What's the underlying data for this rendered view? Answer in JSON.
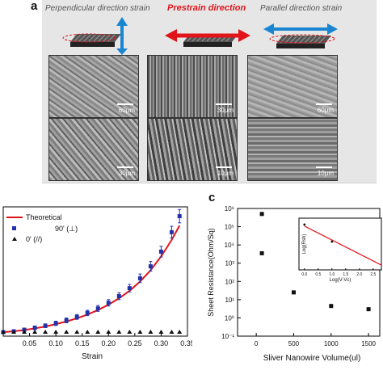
{
  "panel_a": {
    "letter": "a",
    "headers": {
      "perpendicular": "Perpendicular direction strain",
      "prestrain": "Prestrain direction",
      "parallel": "Parallel direction strain"
    },
    "scalebars": {
      "r1c1": "60μm",
      "r1c2": "30μm",
      "r1c3": "60μm",
      "r2c1": "30μm",
      "r2c2": "10μm",
      "r2c3": "10μm"
    },
    "colors": {
      "arrow_blue": "#1a86d2",
      "arrow_red": "#e1141a"
    }
  },
  "panel_c": {
    "letter": "c"
  },
  "chart_data": [
    {
      "type": "scatter",
      "title": "",
      "xlabel": "Strain",
      "ylabel": "",
      "xlim": [
        0.0,
        0.35
      ],
      "x_ticks": [
        "0.05",
        "0.10",
        "0.15",
        "0.20",
        "0.25",
        "0.30",
        "0.35"
      ],
      "legend": [
        "Theoretical",
        "90' (⊥)",
        "0' (//)"
      ],
      "legend_position": "top-left",
      "series": [
        {
          "name": "Theoretical",
          "kind": "line",
          "color": "#e1141a",
          "x": [
            0.0,
            0.02,
            0.04,
            0.06,
            0.08,
            0.1,
            0.12,
            0.14,
            0.16,
            0.18,
            0.2,
            0.22,
            0.24,
            0.26,
            0.28,
            0.3,
            0.32,
            0.335
          ],
          "y": [
            1.0,
            1.03,
            1.08,
            1.14,
            1.21,
            1.3,
            1.4,
            1.52,
            1.66,
            1.83,
            2.03,
            2.27,
            2.55,
            2.9,
            3.32,
            3.84,
            4.46,
            5.0
          ]
        },
        {
          "name": "90' (⊥)",
          "kind": "points",
          "color": "#2233aa",
          "x": [
            0.0,
            0.02,
            0.04,
            0.06,
            0.08,
            0.1,
            0.12,
            0.14,
            0.16,
            0.18,
            0.2,
            0.22,
            0.24,
            0.26,
            0.28,
            0.3,
            0.32,
            0.335
          ],
          "y": [
            1.0,
            1.03,
            1.09,
            1.16,
            1.24,
            1.33,
            1.44,
            1.57,
            1.72,
            1.89,
            2.1,
            2.35,
            2.65,
            3.02,
            3.47,
            4.02,
            4.75,
            5.35
          ],
          "err": [
            0.05,
            0.06,
            0.06,
            0.07,
            0.07,
            0.08,
            0.09,
            0.09,
            0.1,
            0.11,
            0.12,
            0.13,
            0.14,
            0.16,
            0.18,
            0.2,
            0.22,
            0.25
          ]
        },
        {
          "name": "0' (//)",
          "kind": "points",
          "color": "#111111",
          "x": [
            0.0,
            0.02,
            0.04,
            0.06,
            0.08,
            0.1,
            0.12,
            0.14,
            0.16,
            0.18,
            0.2,
            0.22,
            0.24,
            0.26,
            0.28,
            0.3,
            0.32,
            0.335
          ],
          "y": [
            1.0,
            1.0,
            1.0,
            1.0,
            1.0,
            1.0,
            1.0,
            1.0,
            1.0,
            1.0,
            1.0,
            1.0,
            1.0,
            1.0,
            1.0,
            1.0,
            1.0,
            1.0
          ]
        }
      ]
    },
    {
      "type": "scatter",
      "title": "",
      "xlabel": "Sliver Nanowire Volume(ul)",
      "ylabel": "Sheet Resistance(Ohm/Sq)",
      "xlim": [
        -250,
        1650
      ],
      "y_scale": "log",
      "ylim": [
        0.1,
        1000000
      ],
      "x_ticks": [
        "0",
        "500",
        "1000",
        "1500"
      ],
      "y_ticks": [
        "10⁻¹",
        "10⁰",
        "10¹",
        "10²",
        "10³",
        "10⁴",
        "10⁵",
        "10⁶"
      ],
      "series": [
        {
          "name": "",
          "color": "#111111",
          "x": [
            75,
            75,
            500,
            1000,
            1500
          ],
          "y": [
            500000,
            3500,
            25,
            4.5,
            3
          ]
        }
      ],
      "inset": {
        "xlabel": "Log(V-Vc)",
        "ylabel": "Log(Rsh)",
        "x_ticks": [
          "0.0",
          "0.5",
          "1.0",
          "1.5",
          "2.0",
          "2.5"
        ],
        "xlim": [
          -0.2,
          2.8
        ],
        "ylim": [
          0,
          6.5
        ],
        "points": {
          "x": [
            0.0,
            1.0
          ],
          "y": [
            5.7,
            3.55
          ]
        },
        "fit_line": {
          "x": [
            0.0,
            2.8
          ],
          "y": [
            5.5,
            0.6
          ],
          "color": "#e1141a"
        }
      }
    }
  ]
}
